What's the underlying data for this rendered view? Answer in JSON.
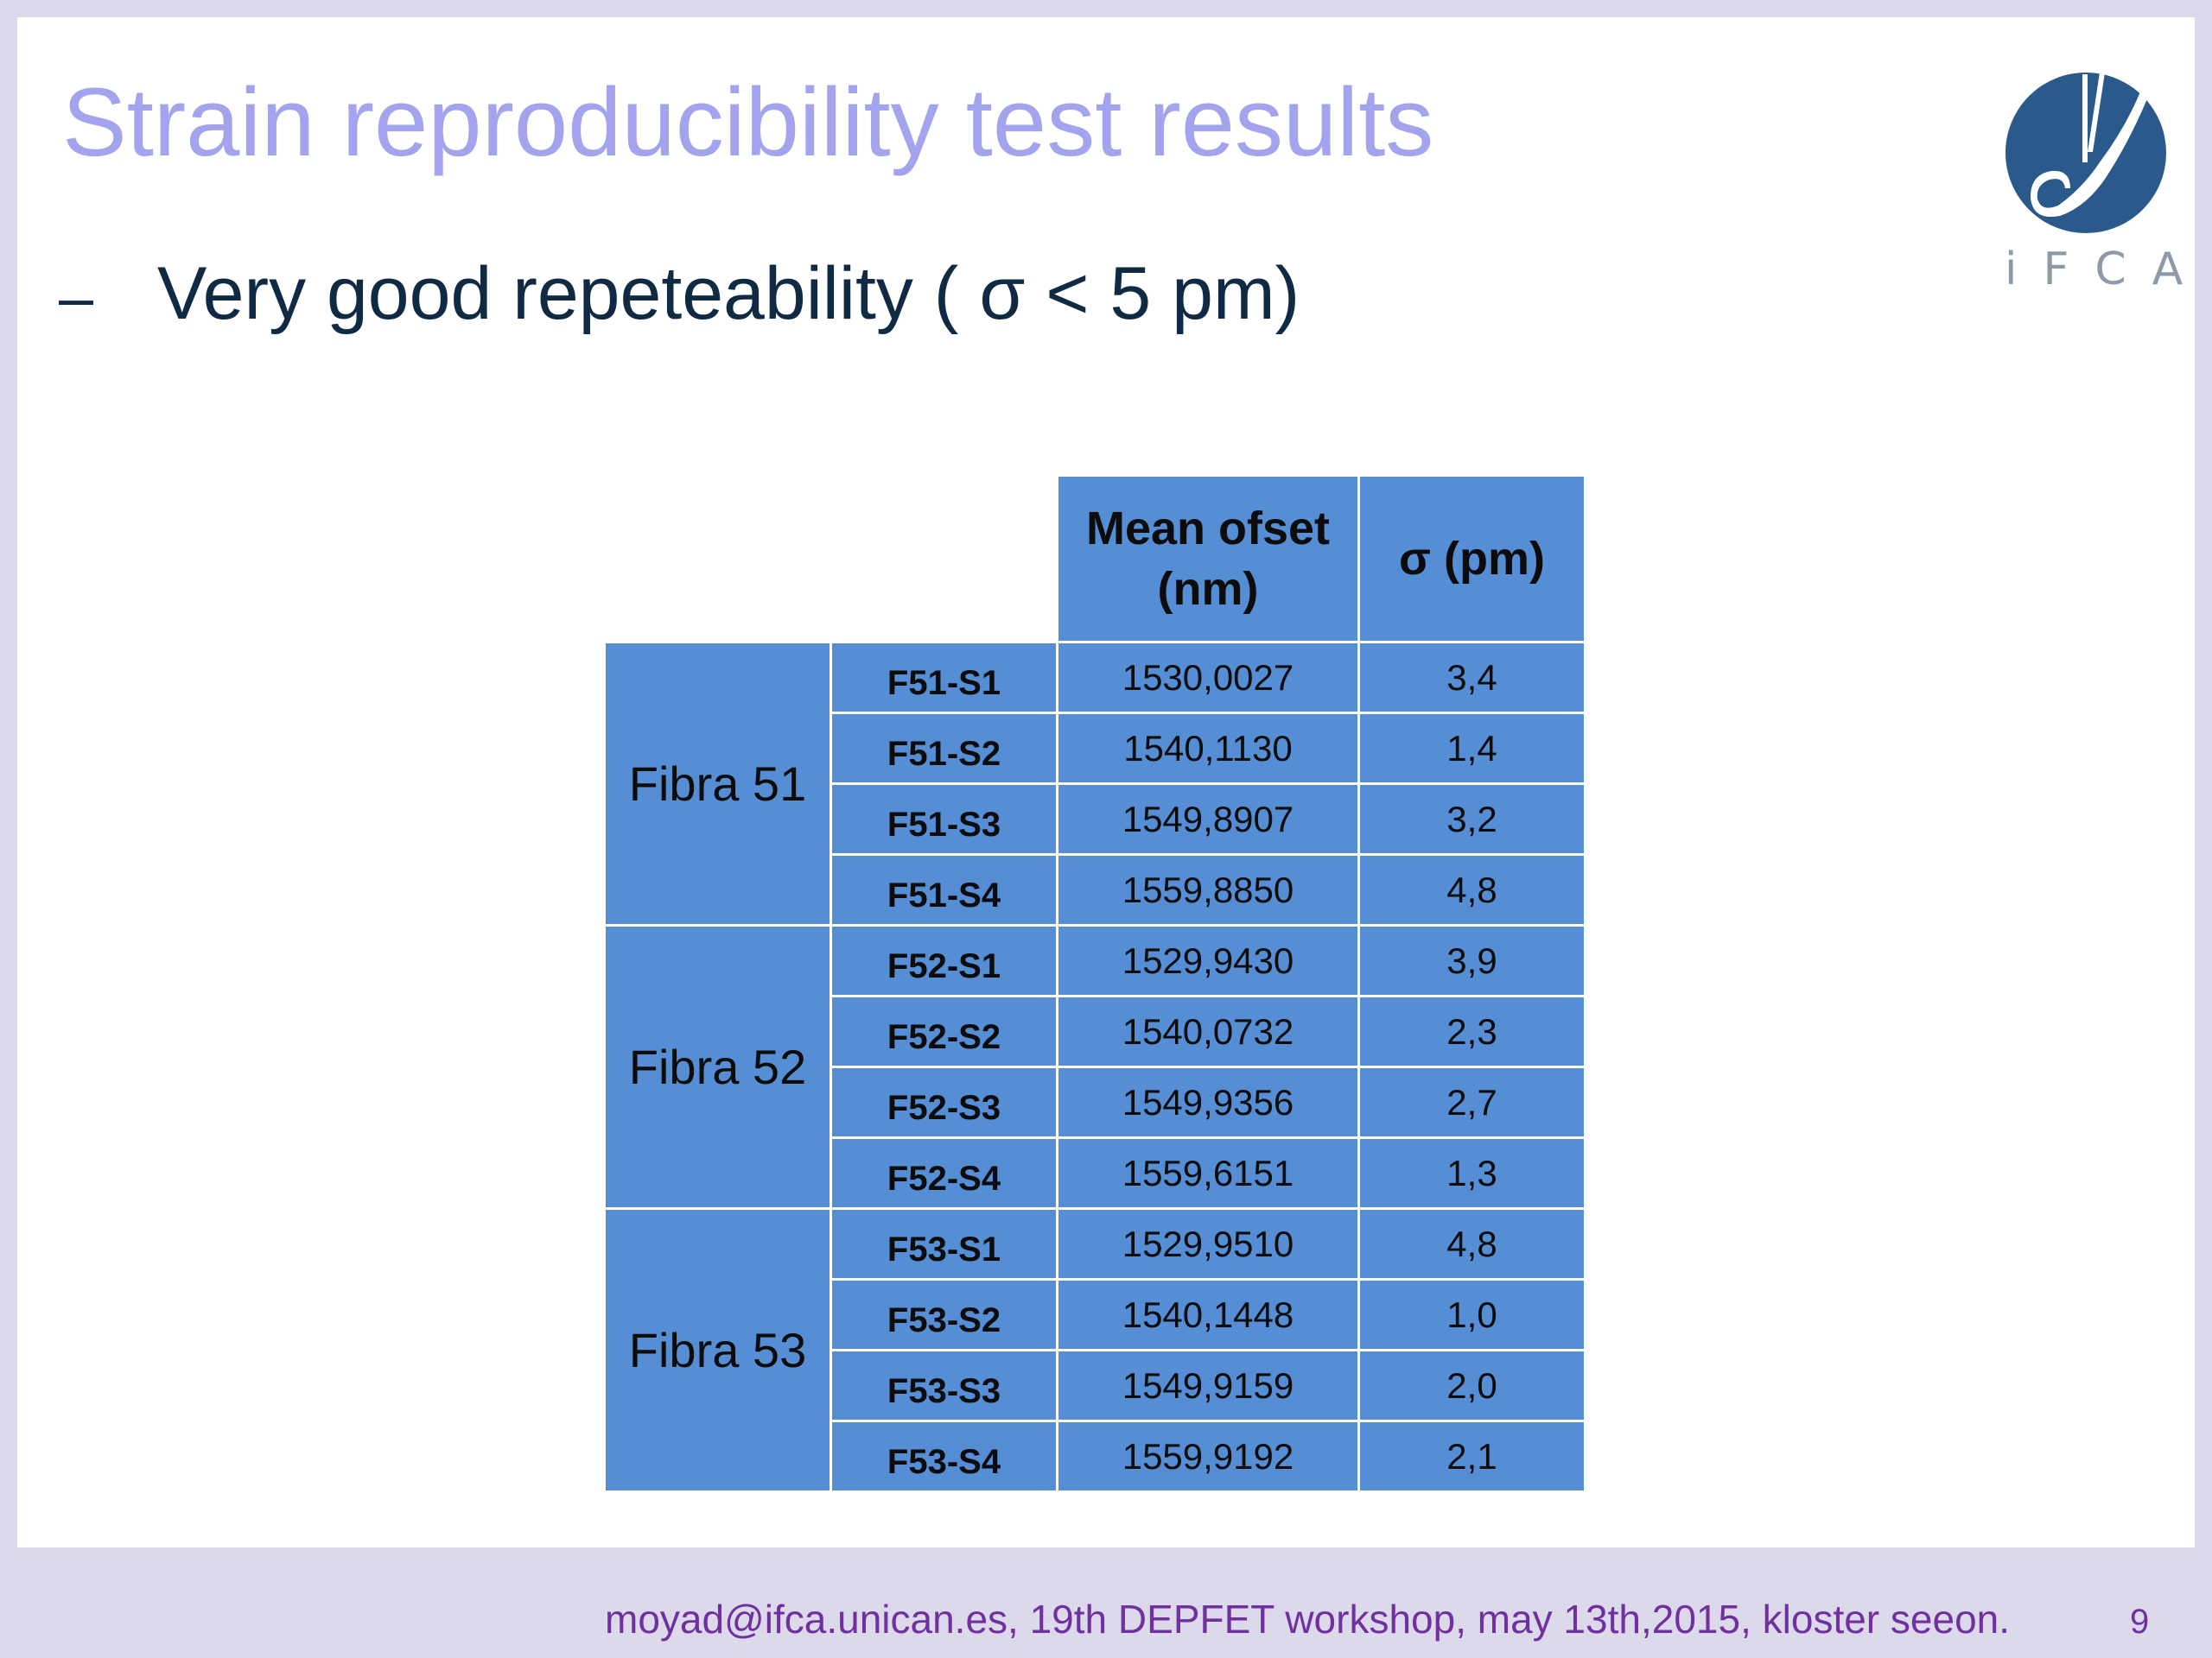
{
  "slide": {
    "title": "Strain reproducibility test results",
    "bullet_marker": "–",
    "bullet": "Very good repeteability ( σ < 5 pm)",
    "logo_text": "iFCA",
    "table": {
      "header_mean": "Mean ofset (nm)",
      "header_sigma": "σ (pm)",
      "groups": [
        {
          "label": "Fibra 51",
          "rows": [
            {
              "sensor": "F51-S1",
              "mean": "1530,0027",
              "sigma": "3,4"
            },
            {
              "sensor": "F51-S2",
              "mean": "1540,1130",
              "sigma": "1,4"
            },
            {
              "sensor": "F51-S3",
              "mean": "1549,8907",
              "sigma": "3,2"
            },
            {
              "sensor": "F51-S4",
              "mean": "1559,8850",
              "sigma": "4,8"
            }
          ]
        },
        {
          "label": "Fibra 52",
          "rows": [
            {
              "sensor": "F52-S1",
              "mean": "1529,9430",
              "sigma": "3,9"
            },
            {
              "sensor": "F52-S2",
              "mean": "1540,0732",
              "sigma": "2,3"
            },
            {
              "sensor": "F52-S3",
              "mean": "1549,9356",
              "sigma": "2,7"
            },
            {
              "sensor": "F52-S4",
              "mean": "1559,6151",
              "sigma": "1,3"
            }
          ]
        },
        {
          "label": "Fibra 53",
          "rows": [
            {
              "sensor": "F53-S1",
              "mean": "1529,9510",
              "sigma": "4,8"
            },
            {
              "sensor": "F53-S2",
              "mean": "1540,1448",
              "sigma": "1,0"
            },
            {
              "sensor": "F53-S3",
              "mean": "1549,9159",
              "sigma": "2,0"
            },
            {
              "sensor": "F53-S4",
              "mean": "1559,9192",
              "sigma": "2,1"
            }
          ]
        }
      ]
    },
    "footer": "moyad@ifca.unican.es, 19th DEPFET workshop, may 13th,2015, kloster seeon.",
    "page_number": "9"
  },
  "colors": {
    "background": "#dcd9ea",
    "title": "#a3a3ee",
    "table_fill": "#558ed5",
    "footer": "#7030a0",
    "logo": "#2a5a8c"
  }
}
